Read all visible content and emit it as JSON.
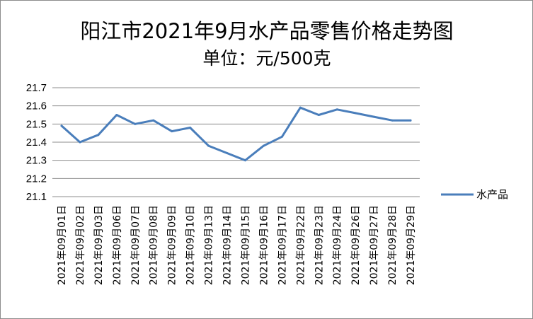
{
  "chart_data": {
    "type": "line",
    "title": "阳江市2021年9月水产品零售价格走势图",
    "subtitle": "单位：元/500克",
    "xlabel": "",
    "ylabel": "",
    "categories": [
      "2021年09月01日",
      "2021年09月02日",
      "2021年09月03日",
      "2021年09月06日",
      "2021年09月07日",
      "2021年09月08日",
      "2021年09月09日",
      "2021年09月10日",
      "2021年09月13日",
      "2021年09月14日",
      "2021年09月15日",
      "2021年09月16日",
      "2021年09月17日",
      "2021年09月22日",
      "2021年09月23日",
      "2021年09月24日",
      "2021年09月26日",
      "2021年09月27日",
      "2021年09月28日",
      "2021年09月29日"
    ],
    "series": [
      {
        "name": "水产品",
        "color": "#4a7ebb",
        "values": [
          21.49,
          21.4,
          21.44,
          21.55,
          21.5,
          21.52,
          21.46,
          21.48,
          21.38,
          21.34,
          21.3,
          21.38,
          21.43,
          21.59,
          21.55,
          21.58,
          21.56,
          21.54,
          21.52,
          21.52
        ]
      }
    ],
    "ylim": [
      21.1,
      21.7
    ],
    "yticks": [
      "21.1",
      "21.2",
      "21.3",
      "21.4",
      "21.5",
      "21.6",
      "21.7"
    ],
    "grid": true,
    "legend_position": "right"
  }
}
